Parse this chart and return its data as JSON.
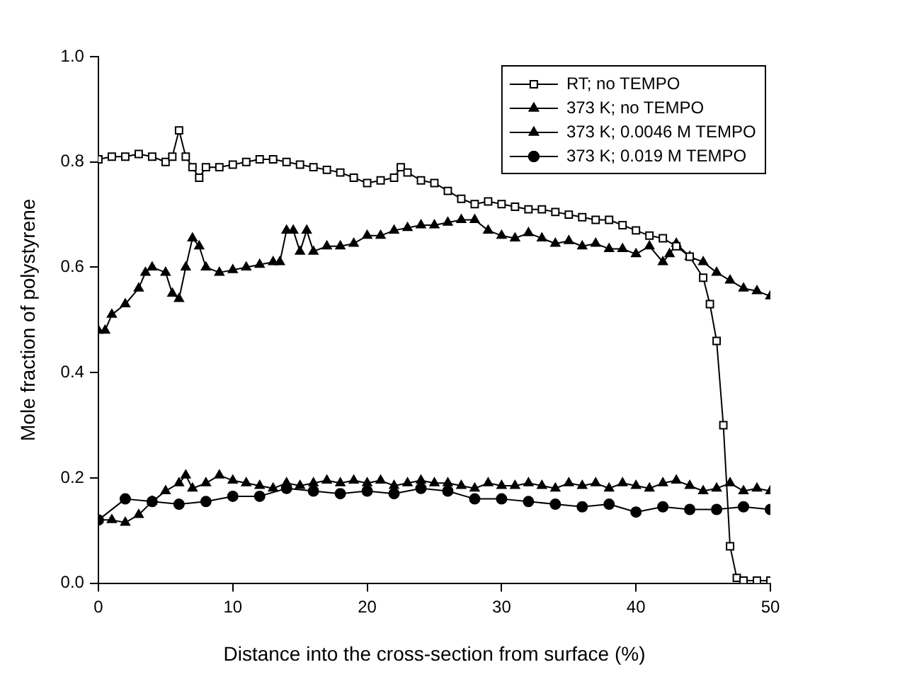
{
  "chart_data": {
    "type": "line",
    "xlabel": "Distance into the cross-section from surface (%)",
    "ylabel": "Mole fraction of polystyrene",
    "xlim": [
      0,
      50
    ],
    "xticks": [
      0,
      10,
      20,
      30,
      40,
      50
    ],
    "ylim": [
      0,
      1
    ],
    "yticks": [
      {
        "value": 0,
        "label": "0.0"
      },
      {
        "value": 0.2,
        "label": "0.2"
      },
      {
        "value": 0.4,
        "label": "0.4"
      },
      {
        "value": 0.6,
        "label": "0.6"
      },
      {
        "value": 0.8,
        "label": "0.8"
      },
      {
        "value": 1,
        "label": "1.0"
      }
    ],
    "grid": false,
    "legend": "top right",
    "line_style": "solid",
    "series": [
      {
        "name": "RT; no TEMPO",
        "color": "#000000",
        "marker": "square",
        "x": [
          0,
          1,
          2,
          3,
          4,
          5,
          5.5,
          6,
          6.5,
          7,
          7.5,
          8,
          9,
          10,
          11,
          12,
          13,
          14,
          15,
          16,
          17,
          18,
          19,
          20,
          21,
          22,
          22.5,
          23,
          24,
          25,
          26,
          27,
          28,
          29,
          30,
          31,
          32,
          33,
          34,
          35,
          36,
          37,
          38,
          39,
          40,
          41,
          42,
          43,
          44,
          45,
          45.5,
          46,
          46.5,
          47,
          47.5,
          48,
          49,
          50
        ],
        "values": [
          0.805,
          0.81,
          0.81,
          0.815,
          0.81,
          0.8,
          0.81,
          0.86,
          0.81,
          0.79,
          0.77,
          0.79,
          0.79,
          0.795,
          0.8,
          0.805,
          0.805,
          0.8,
          0.795,
          0.79,
          0.785,
          0.78,
          0.77,
          0.76,
          0.765,
          0.77,
          0.79,
          0.78,
          0.765,
          0.76,
          0.745,
          0.73,
          0.72,
          0.725,
          0.72,
          0.715,
          0.71,
          0.71,
          0.705,
          0.7,
          0.695,
          0.69,
          0.69,
          0.68,
          0.67,
          0.66,
          0.655,
          0.64,
          0.62,
          0.58,
          0.53,
          0.46,
          0.3,
          0.07,
          0.01,
          0.005,
          0.005,
          0.005
        ]
      },
      {
        "name": "373 K; no TEMPO",
        "color": "#000000",
        "marker": "triangle",
        "x": [
          0,
          0.5,
          1,
          2,
          3,
          3.5,
          4,
          5,
          5.5,
          6,
          6.5,
          7,
          7.5,
          8,
          9,
          10,
          11,
          12,
          13,
          13.5,
          14,
          14.5,
          15,
          15.5,
          16,
          17,
          18,
          19,
          20,
          21,
          22,
          23,
          24,
          25,
          26,
          27,
          28,
          29,
          30,
          31,
          32,
          33,
          34,
          35,
          36,
          37,
          38,
          39,
          40,
          41,
          42,
          42.5,
          43,
          44,
          45,
          46,
          47,
          48,
          49,
          50
        ],
        "values": [
          0.48,
          0.48,
          0.51,
          0.53,
          0.56,
          0.59,
          0.6,
          0.59,
          0.55,
          0.54,
          0.6,
          0.655,
          0.64,
          0.6,
          0.59,
          0.595,
          0.6,
          0.605,
          0.61,
          0.61,
          0.67,
          0.67,
          0.63,
          0.67,
          0.63,
          0.64,
          0.64,
          0.645,
          0.66,
          0.66,
          0.67,
          0.675,
          0.68,
          0.68,
          0.685,
          0.69,
          0.69,
          0.67,
          0.66,
          0.655,
          0.665,
          0.655,
          0.645,
          0.65,
          0.64,
          0.645,
          0.635,
          0.635,
          0.625,
          0.64,
          0.61,
          0.625,
          0.645,
          0.62,
          0.61,
          0.59,
          0.575,
          0.56,
          0.555,
          0.545
        ]
      },
      {
        "name": "373 K; 0.0046 M TEMPO",
        "color": "#000000",
        "marker": "triangle",
        "x": [
          0,
          1,
          2,
          3,
          4,
          5,
          6,
          6.5,
          7,
          8,
          9,
          10,
          11,
          12,
          13,
          14,
          15,
          16,
          17,
          18,
          19,
          20,
          21,
          22,
          23,
          24,
          25,
          26,
          27,
          28,
          29,
          30,
          31,
          32,
          33,
          34,
          35,
          36,
          37,
          38,
          39,
          40,
          41,
          42,
          43,
          44,
          45,
          46,
          47,
          48,
          49,
          50
        ],
        "values": [
          0.12,
          0.12,
          0.115,
          0.13,
          0.155,
          0.175,
          0.19,
          0.205,
          0.18,
          0.19,
          0.205,
          0.195,
          0.19,
          0.185,
          0.18,
          0.19,
          0.185,
          0.19,
          0.195,
          0.19,
          0.195,
          0.19,
          0.195,
          0.185,
          0.19,
          0.195,
          0.19,
          0.19,
          0.185,
          0.18,
          0.19,
          0.185,
          0.185,
          0.19,
          0.185,
          0.18,
          0.19,
          0.185,
          0.19,
          0.18,
          0.19,
          0.185,
          0.18,
          0.19,
          0.195,
          0.185,
          0.175,
          0.18,
          0.19,
          0.175,
          0.18,
          0.175
        ]
      },
      {
        "name": "373 K; 0.019 M TEMPO",
        "color": "#000000",
        "marker": "circle",
        "x": [
          0,
          2,
          4,
          6,
          8,
          10,
          12,
          14,
          16,
          18,
          20,
          22,
          24,
          26,
          28,
          30,
          32,
          34,
          36,
          38,
          40,
          42,
          44,
          46,
          48,
          50
        ],
        "values": [
          0.12,
          0.16,
          0.155,
          0.15,
          0.155,
          0.165,
          0.165,
          0.18,
          0.175,
          0.17,
          0.175,
          0.17,
          0.18,
          0.175,
          0.16,
          0.16,
          0.155,
          0.15,
          0.145,
          0.15,
          0.135,
          0.145,
          0.14,
          0.14,
          0.145,
          0.14
        ]
      }
    ]
  }
}
